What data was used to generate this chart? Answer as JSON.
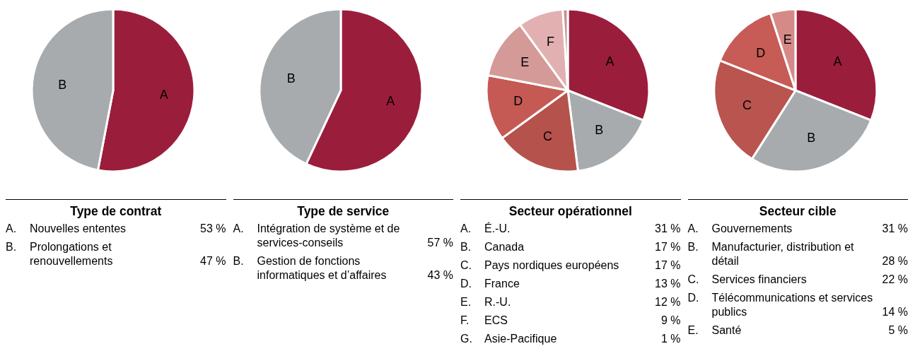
{
  "chart_data": [
    {
      "type": "pie",
      "title": "Type de contrat",
      "categories": [
        "A",
        "B"
      ],
      "values": [
        53,
        47
      ],
      "colors": [
        "#9b1d3c",
        "#a7abae"
      ],
      "annotations": [
        "A.",
        "Nouvelles ententes",
        "53 %",
        "B.",
        "Prolongations et renouvellements",
        "47 %"
      ]
    },
    {
      "type": "pie",
      "title": "Type de service",
      "categories": [
        "A",
        "B"
      ],
      "values": [
        57,
        43
      ],
      "colors": [
        "#9b1d3c",
        "#a7abae"
      ],
      "annotations": [
        "A.",
        "Intégration de système et de services-conseils",
        "57 %",
        "B.",
        "Gestion de fonctions informatiques et d’affaires",
        "43 %"
      ]
    },
    {
      "type": "pie",
      "title": "Secteur opérationnel",
      "categories": [
        "A",
        "B",
        "C",
        "D",
        "E",
        "F",
        null
      ],
      "values": [
        31,
        17,
        17,
        13,
        12,
        9,
        1
      ],
      "colors": [
        "#9b1d3c",
        "#a7abae",
        "#b5524c",
        "#c55a55",
        "#d49a98",
        "#e2b0b0",
        "#c8908e"
      ],
      "annotations": [
        "A.",
        "É.-U.",
        "31 %",
        "B.",
        "Canada",
        "17 %",
        "C.",
        "Pays nordiques européens",
        "17 %",
        "D.",
        "France",
        "13 %",
        "E.",
        "R.-U.",
        "12 %",
        "F.",
        "ECS",
        "9 %",
        "G.",
        "Asie-Pacifique",
        "1 %"
      ]
    },
    {
      "type": "pie",
      "title": "Secteur cible",
      "categories": [
        "A",
        "B",
        "C",
        "D",
        "E"
      ],
      "values": [
        31,
        28,
        22,
        14,
        5
      ],
      "colors": [
        "#9b1d3c",
        "#a7abae",
        "#b9544f",
        "#c75b55",
        "#d68a87"
      ],
      "annotations": [
        "A.",
        "Gouvernements",
        "31 %",
        "B.",
        "Manufacturier, distribution et détail",
        "28 %",
        "C.",
        "Services financiers",
        "22 %",
        "D.",
        "Télécommunications et services publics",
        "14 %",
        "E.",
        "Santé",
        "5 %"
      ]
    }
  ]
}
